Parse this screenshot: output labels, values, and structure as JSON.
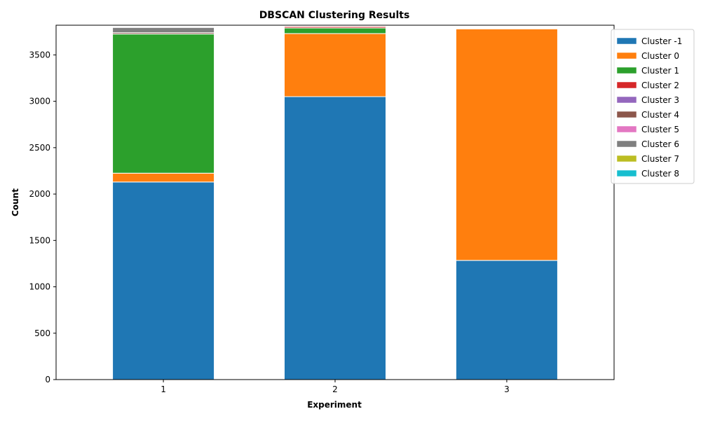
{
  "chart_data": {
    "type": "bar",
    "stacked": true,
    "title": "DBSCAN Clustering Results",
    "xlabel": "Experiment",
    "ylabel": "Count",
    "categories": [
      "1",
      "2",
      "3"
    ],
    "ylim": [
      0,
      3820
    ],
    "yticks": [
      0,
      500,
      1000,
      1500,
      2000,
      2500,
      3000,
      3500
    ],
    "legend_position": "upper-right-outside",
    "series": [
      {
        "name": "Cluster -1",
        "color": "#1f77b4",
        "values": [
          2130,
          3050,
          1285
        ]
      },
      {
        "name": "Cluster 0",
        "color": "#ff7f0e",
        "values": [
          95,
          680,
          2495
        ]
      },
      {
        "name": "Cluster 1",
        "color": "#2ca02c",
        "values": [
          1500,
          60,
          0
        ]
      },
      {
        "name": "Cluster 2",
        "color": "#d62728",
        "values": [
          0,
          15,
          0
        ]
      },
      {
        "name": "Cluster 3",
        "color": "#9467bd",
        "values": [
          0,
          0,
          0
        ]
      },
      {
        "name": "Cluster 4",
        "color": "#8c564b",
        "values": [
          15,
          5,
          0
        ]
      },
      {
        "name": "Cluster 5",
        "color": "#e377c2",
        "values": [
          0,
          0,
          0
        ]
      },
      {
        "name": "Cluster 6",
        "color": "#7f7f7f",
        "values": [
          55,
          0,
          0
        ]
      },
      {
        "name": "Cluster 7",
        "color": "#bcbd22",
        "values": [
          0,
          0,
          0
        ]
      },
      {
        "name": "Cluster 8",
        "color": "#17becf",
        "values": [
          0,
          0,
          0
        ]
      }
    ]
  }
}
